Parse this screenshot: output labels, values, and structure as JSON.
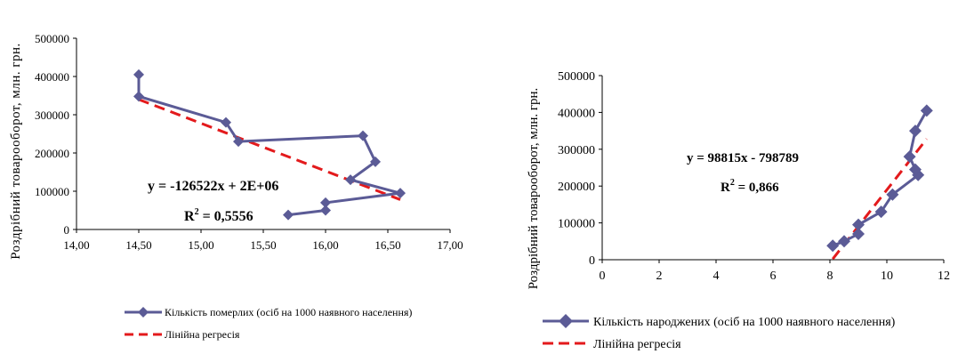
{
  "chart_data": [
    {
      "type": "scatter",
      "ylabel": "Роздрібний товарооборот, млн. грн.",
      "xlim": [
        14,
        17
      ],
      "ylim": [
        0,
        500000
      ],
      "x_ticks": [
        "14,00",
        "14,50",
        "15,00",
        "15,50",
        "16,00",
        "16,50",
        "17,00"
      ],
      "y_ticks": [
        "0",
        "100000",
        "200000",
        "300000",
        "400000",
        "500000"
      ],
      "grid": false,
      "legend_position": "bottom",
      "series": [
        {
          "name": "Кількість померлих (осіб на 1000 наявного населення)",
          "color": "#5b5b96",
          "marker": "diamond",
          "connected": true,
          "points": [
            [
              14.5,
              405000
            ],
            [
              14.5,
              348000
            ],
            [
              15.2,
              280000
            ],
            [
              15.3,
              230000
            ],
            [
              16.3,
              245000
            ],
            [
              16.4,
              177000
            ],
            [
              16.2,
              130000
            ],
            [
              16.6,
              95000
            ],
            [
              16.0,
              70000
            ],
            [
              16.0,
              50000
            ],
            [
              15.7,
              38000
            ]
          ]
        },
        {
          "name": "Лінійна регресія",
          "color": "#e31a1c",
          "dashed": true,
          "points": [
            [
              14.5,
              340000
            ],
            [
              16.6,
              78000
            ]
          ]
        }
      ],
      "annotations": [
        "y = -126522x + 2E+06",
        "R2 = 0,5556"
      ]
    },
    {
      "type": "scatter",
      "ylabel": "Роздрібний товарооборот, млн. грн.",
      "xlim": [
        0,
        12
      ],
      "ylim": [
        0,
        500000
      ],
      "x_ticks": [
        "0",
        "2",
        "4",
        "6",
        "8",
        "10",
        "12"
      ],
      "y_ticks": [
        "0",
        "100000",
        "200000",
        "300000",
        "400000",
        "500000"
      ],
      "grid": false,
      "legend_position": "bottom",
      "series": [
        {
          "name": "Кількість народжених (осіб на 1000 наявного населення)",
          "color": "#5b5b96",
          "marker": "diamond",
          "connected": true,
          "points": [
            [
              8.1,
              38000
            ],
            [
              8.5,
              50000
            ],
            [
              9.0,
              70000
            ],
            [
              9.0,
              95000
            ],
            [
              9.8,
              130000
            ],
            [
              10.2,
              177000
            ],
            [
              11.1,
              230000
            ],
            [
              11.0,
              245000
            ],
            [
              10.8,
              280000
            ],
            [
              11.0,
              350000
            ],
            [
              11.4,
              405000
            ]
          ]
        },
        {
          "name": "Лінійна регресія",
          "color": "#e31a1c",
          "dashed": true,
          "points": [
            [
              8.1,
              2000
            ],
            [
              11.4,
              328000
            ]
          ]
        }
      ],
      "annotations": [
        "y = 98815x - 798789",
        "R2 = 0,866"
      ]
    }
  ]
}
